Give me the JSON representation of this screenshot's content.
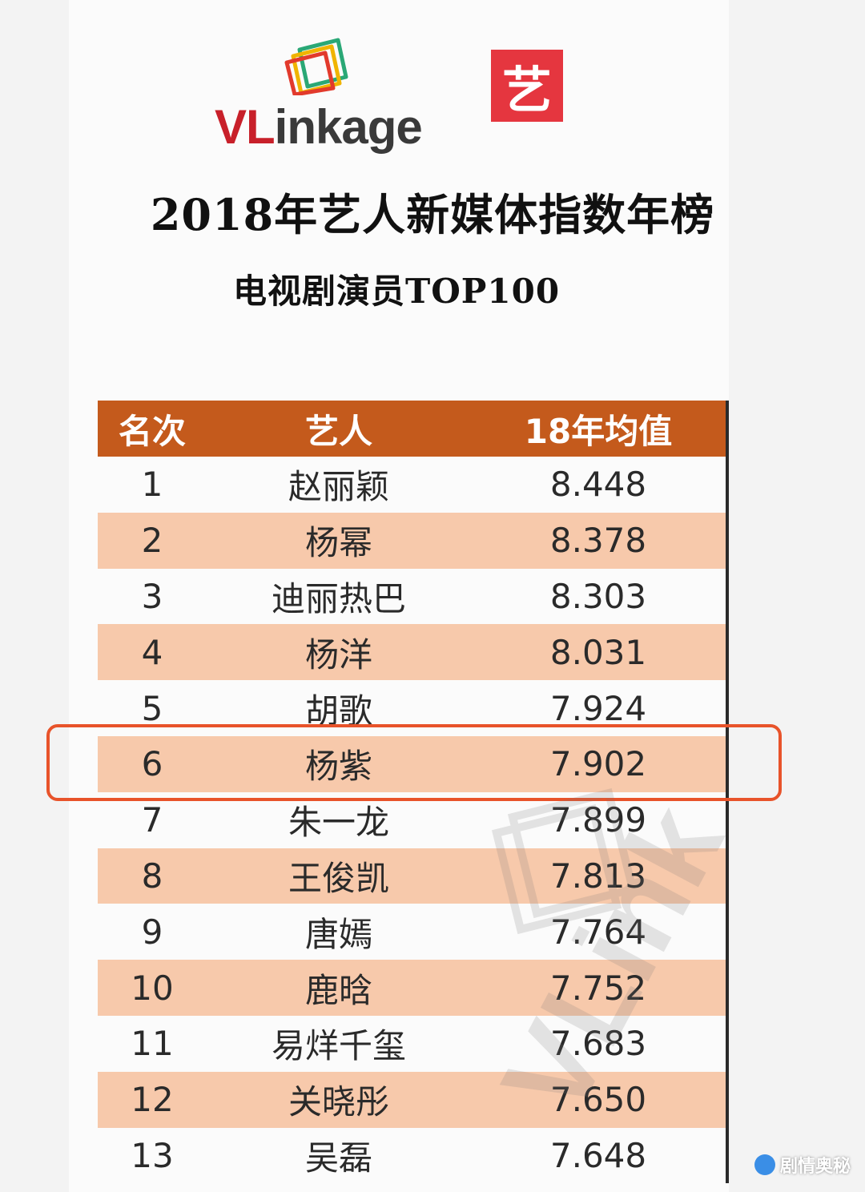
{
  "logo": {
    "brand_red": "VL",
    "brand_rest": "inkage",
    "badge": "艺"
  },
  "title": "2018年艺人新媒体指数年榜",
  "subtitle": "电视剧演员TOP100",
  "table": {
    "headers": [
      "名次",
      "艺人",
      "18年均值"
    ],
    "header_color": "#c45a1c",
    "stripe_color": "#f7c9ab",
    "rows": [
      {
        "rank": "1",
        "name": "赵丽颖",
        "value": "8.448"
      },
      {
        "rank": "2",
        "name": "杨幂",
        "value": "8.378"
      },
      {
        "rank": "3",
        "name": "迪丽热巴",
        "value": "8.303"
      },
      {
        "rank": "4",
        "name": "杨洋",
        "value": "8.031"
      },
      {
        "rank": "5",
        "name": "胡歌",
        "value": "7.924"
      },
      {
        "rank": "6",
        "name": "杨紫",
        "value": "7.902"
      },
      {
        "rank": "7",
        "name": "朱一龙",
        "value": "7.899"
      },
      {
        "rank": "8",
        "name": "王俊凯",
        "value": "7.813"
      },
      {
        "rank": "9",
        "name": "唐嫣",
        "value": "7.764"
      },
      {
        "rank": "10",
        "name": "鹿晗",
        "value": "7.752"
      },
      {
        "rank": "11",
        "name": "易烊千玺",
        "value": "7.683"
      },
      {
        "rank": "12",
        "name": "关晓彤",
        "value": "7.650"
      },
      {
        "rank": "13",
        "name": "吴磊",
        "value": "7.648"
      }
    ],
    "highlighted_rank": "6",
    "highlight_color": "#e8532a"
  },
  "watermark": {
    "text": "VLink"
  },
  "corner_mark": {
    "text": "剧情奥秘"
  }
}
